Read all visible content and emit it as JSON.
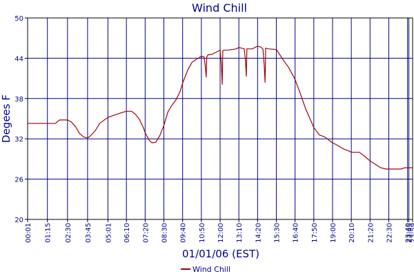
{
  "chart_data": {
    "type": "line",
    "title": "Wind Chill",
    "xlabel": "01/01/06 (EST)",
    "ylabel": "Degees F",
    "ylim": [
      20,
      50
    ],
    "yticks": [
      20,
      26,
      32,
      38,
      44,
      50
    ],
    "xlim_minutes": [
      1,
      1439
    ],
    "x_tick_labels": [
      "00:01",
      "01:15",
      "02:30",
      "03:45",
      "05:01",
      "06:10",
      "07:20",
      "08:30",
      "09:40",
      "10:50",
      "12:00",
      "13:10",
      "14:20",
      "15:30",
      "16:40",
      "17:50",
      "19:00",
      "20:10",
      "21:20",
      "22:30",
      "23:40",
      "23:45",
      "23:59"
    ],
    "x_tick_minutes": [
      1,
      75,
      150,
      225,
      301,
      370,
      440,
      510,
      580,
      650,
      720,
      790,
      860,
      930,
      1000,
      1070,
      1140,
      1210,
      1280,
      1350,
      1420,
      1425,
      1439
    ],
    "grid": true,
    "legend_position": "bottom-center",
    "series": [
      {
        "name": "Wind Chill",
        "color": "#a00000",
        "x": [
          "00:01",
          "00:30",
          "01:00",
          "01:15",
          "01:45",
          "02:00",
          "02:30",
          "02:45",
          "03:00",
          "03:15",
          "03:30",
          "03:45",
          "04:00",
          "04:15",
          "04:30",
          "05:01",
          "05:30",
          "06:00",
          "06:10",
          "06:30",
          "06:45",
          "07:00",
          "07:15",
          "07:20",
          "07:35",
          "07:45",
          "08:00",
          "08:15",
          "08:30",
          "08:45",
          "09:00",
          "09:15",
          "09:30",
          "09:40",
          "10:00",
          "10:15",
          "10:30",
          "10:50",
          "11:00",
          "11:05",
          "11:08",
          "11:10",
          "11:15",
          "11:30",
          "11:45",
          "12:00",
          "12:05",
          "12:08",
          "12:10",
          "12:15",
          "12:30",
          "13:00",
          "13:10",
          "13:30",
          "13:35",
          "13:38",
          "13:40",
          "13:50",
          "14:00",
          "14:20",
          "14:30",
          "14:40",
          "14:45",
          "14:48",
          "14:50",
          "15:00",
          "15:30",
          "15:45",
          "16:00",
          "16:15",
          "16:30",
          "16:40",
          "17:00",
          "17:20",
          "17:40",
          "17:50",
          "18:10",
          "18:30",
          "19:00",
          "19:20",
          "19:40",
          "20:00",
          "20:10",
          "20:30",
          "20:40",
          "21:00",
          "21:20",
          "21:40",
          "22:00",
          "22:20",
          "22:30",
          "23:00",
          "23:15",
          "23:30",
          "23:45",
          "23:59"
        ],
        "values": [
          34.3,
          34.3,
          34.3,
          34.3,
          34.3,
          34.8,
          34.8,
          34.5,
          33.8,
          32.8,
          32.3,
          32.1,
          32.6,
          33.3,
          34.3,
          35.2,
          35.6,
          36.0,
          36.1,
          36.1,
          35.6,
          34.8,
          33.5,
          32.9,
          31.8,
          31.4,
          31.5,
          32.5,
          34.0,
          36.0,
          37.0,
          37.8,
          39.0,
          40.3,
          42.3,
          43.4,
          43.8,
          44.3,
          44.2,
          42.6,
          41.2,
          44.2,
          44.5,
          44.6,
          44.9,
          45.2,
          43.0,
          40.1,
          45.1,
          45.2,
          45.2,
          45.4,
          45.6,
          45.4,
          43.5,
          41.3,
          45.4,
          45.4,
          45.4,
          45.8,
          45.7,
          45.4,
          42.8,
          40.4,
          45.5,
          45.4,
          45.3,
          44.4,
          43.5,
          42.7,
          41.6,
          40.8,
          38.7,
          36.4,
          34.6,
          33.7,
          32.6,
          32.3,
          31.4,
          31.0,
          30.5,
          30.2,
          30.0,
          30.0,
          30.0,
          29.4,
          28.7,
          28.2,
          27.7,
          27.5,
          27.5,
          27.5,
          27.5,
          27.7,
          27.7,
          27.7
        ]
      }
    ]
  }
}
